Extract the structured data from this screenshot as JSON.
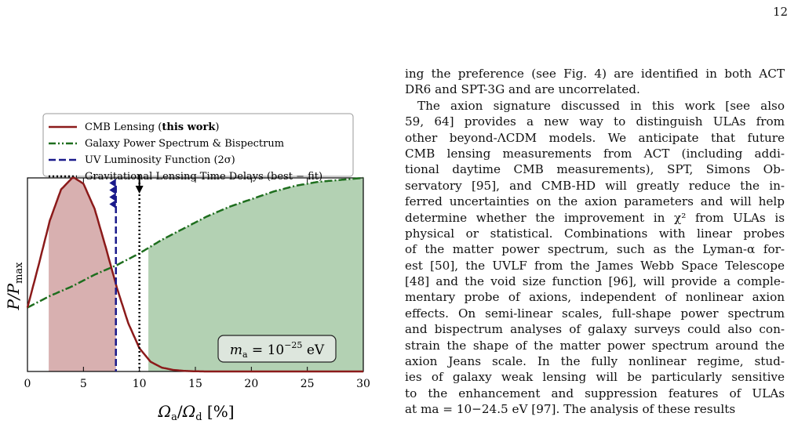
{
  "page": {
    "number": "12"
  },
  "chart_data": {
    "type": "line",
    "xlabel": "Ωa/Ωd [%]",
    "ylabel": "P/Pmax",
    "xlim": [
      0,
      30
    ],
    "ylim": [
      0,
      1
    ],
    "x_ticks": [
      "0",
      "5",
      "10",
      "15",
      "20",
      "25",
      "30"
    ],
    "annotation": "ma = 10−25 eV",
    "legend_placement": "top-left (above axes)",
    "series": [
      {
        "name": "CMB Lensing (this work)",
        "style": "solid",
        "color": "#8b1a1a",
        "x": [
          0,
          1,
          2,
          3,
          4,
          4.2,
          5,
          6,
          7,
          8,
          9,
          10,
          11,
          12,
          13,
          14,
          15,
          16,
          20,
          25,
          30
        ],
        "y": [
          0.33,
          0.55,
          0.78,
          0.94,
          1.0,
          1.0,
          0.97,
          0.84,
          0.64,
          0.43,
          0.25,
          0.12,
          0.05,
          0.02,
          0.008,
          0.003,
          0.001,
          0.0,
          0.0,
          0.0,
          0.0
        ]
      },
      {
        "name": "Galaxy Power Spectrum & Bispectrum",
        "style": "dash-dot",
        "color": "#1e6e1e",
        "x": [
          0,
          2,
          4,
          6,
          8,
          10,
          12,
          14,
          16,
          18,
          20,
          22,
          24,
          26,
          28,
          30
        ],
        "y": [
          0.33,
          0.39,
          0.44,
          0.5,
          0.55,
          0.61,
          0.68,
          0.74,
          0.8,
          0.85,
          0.89,
          0.93,
          0.96,
          0.98,
          0.99,
          1.0
        ]
      },
      {
        "name": "UV Luminosity Function (2σ)",
        "style": "dashed",
        "color": "#1a1a8b",
        "limit_x": 7.9
      },
      {
        "name": "Gravitational Lensing Time Delays (best − fit)",
        "style": "dotted",
        "color": "#000000",
        "limit_x": 10
      }
    ],
    "shaded_regions": [
      {
        "x_range": [
          1.9,
          7.9
        ],
        "color": "#d8b0b0"
      },
      {
        "x_range": [
          10.8,
          30
        ],
        "color": "#b3d1b3"
      }
    ]
  },
  "legend": [
    {
      "text": "CMB Lensing (",
      "bold": "this work",
      "tail": ")"
    },
    {
      "text": "Galaxy Power Spectrum & Bispectrum"
    },
    {
      "text": "UV Luminosity Function (2σ)"
    },
    {
      "text": "Gravitational Lensing Time Delays (best − fit)"
    }
  ],
  "text": {
    "lines": [
      "ing the preference (see Fig. 4) are identified in both ACT",
      "DR6 and SPT-3G and are uncorrelated.",
      "The axion signature discussed in this work [see also",
      "59, 64] provides a new way to distinguish ULAs from",
      "other beyond-ΛCDM models. We anticipate that future",
      "CMB lensing measurements from ACT (including addi-",
      "tional daytime CMB measurements), SPT, Simons Ob-",
      "servatory [95], and CMB-HD will greatly reduce the in-",
      "ferred uncertainties on the axion parameters and will help",
      "determine whether the improvement in χ² from ULAs is",
      "physical or statistical. Combinations with linear probes",
      "of the matter power spectrum, such as the Lyman-α for-",
      "est [50], the UVLF from the James Webb Space Telescope",
      "[48] and the void size function [96], will provide a comple-",
      "mentary probe of axions, independent of nonlinear axion",
      "effects. On semi-linear scales, full-shape power spectrum",
      "and bispectrum analyses of galaxy surveys could also con-",
      "strain the shape of the matter power spectrum around the",
      "axion Jeans scale. In the fully nonlinear regime, stud-",
      "ies of galaxy weak lensing will be particularly sensitive",
      "to the enhancement and suppression features of ULAs",
      "at ma = 10−24.5 eV [97]. The analysis of these results"
    ]
  }
}
